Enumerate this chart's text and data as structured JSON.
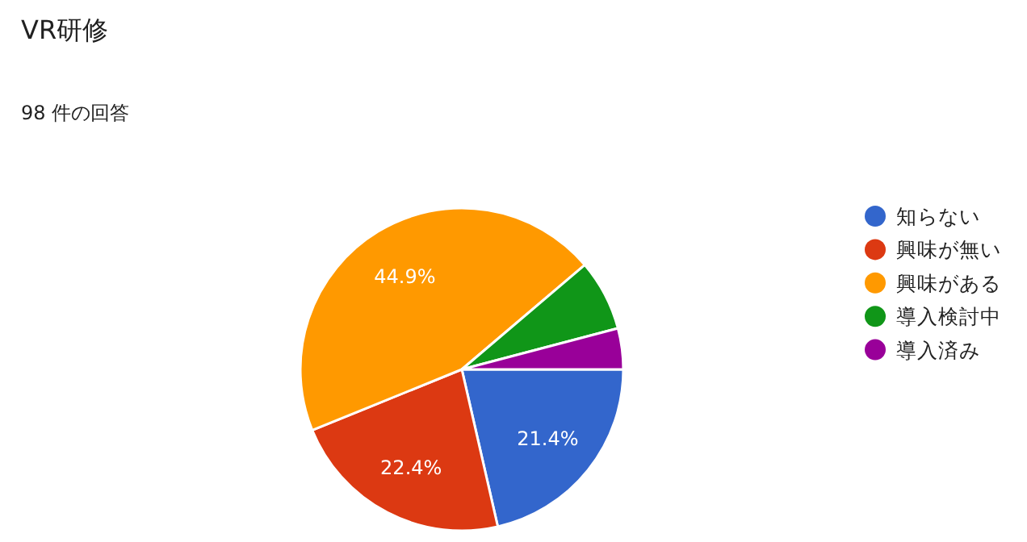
{
  "chart_data": {
    "type": "pie",
    "title": "VR研修",
    "subtitle": "98 件の回答",
    "categories": [
      "知らない",
      "興味が無い",
      "興味がある",
      "導入検討中",
      "導入済み"
    ],
    "values": [
      21.4,
      22.4,
      44.9,
      7.1,
      4.1
    ],
    "colors": [
      "#3366cc",
      "#dc3912",
      "#ff9900",
      "#109618",
      "#990099"
    ],
    "value_labels": [
      "21.4%",
      "22.4%",
      "44.9%",
      null,
      null
    ],
    "legend": "right"
  }
}
